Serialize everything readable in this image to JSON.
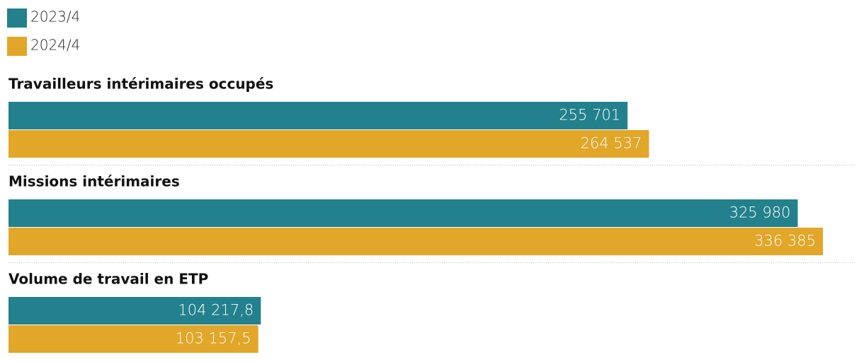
{
  "chart_data": {
    "type": "bar",
    "orientation": "horizontal",
    "categories": [
      "Travailleurs intérimaires occupés",
      "Missions intérimaires",
      "Volume de travail en ETP"
    ],
    "series": [
      {
        "name": "2023/4",
        "color": "#23818d",
        "values": [
          255701,
          325980,
          104217.8
        ],
        "value_labels": [
          "255 701",
          "325 980",
          "104 217,8"
        ]
      },
      {
        "name": "2024/4",
        "color": "#e2a628",
        "values": [
          264537,
          336385,
          103157.5
        ],
        "value_labels": [
          "264 537",
          "336 385",
          "103 157,5"
        ]
      }
    ]
  }
}
